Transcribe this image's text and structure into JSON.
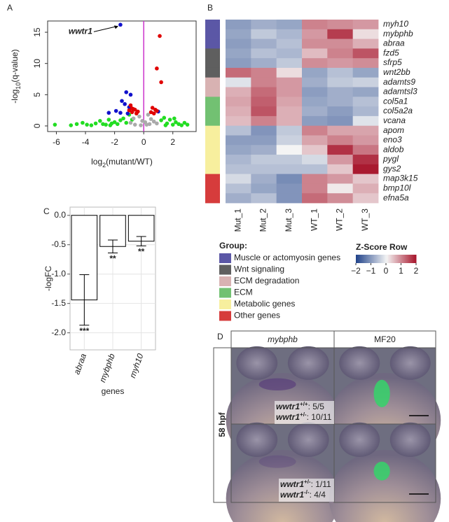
{
  "panel_labels": [
    "A",
    "B",
    "C",
    "D"
  ],
  "chart_data": [
    {
      "type": "scatter",
      "xlabel": [
        "log",
        "2",
        "(mutant/WT)"
      ],
      "ylabel": [
        "-log",
        "10",
        "(q-value)"
      ],
      "xlim": [
        -6.6,
        3.6
      ],
      "ylim": [
        -0.9,
        16.8
      ],
      "xticks": [
        -6,
        -4,
        -2,
        0,
        2
      ],
      "yticks": [
        0,
        5,
        10,
        15
      ],
      "vline": {
        "x": 0,
        "color": "#cc33cc"
      },
      "annotation": "wwtr1",
      "series": [
        {
          "color": "#22dd22",
          "x": [
            -6.1,
            -5.0,
            -4.6,
            -4.2,
            -3.9,
            -3.6,
            -3.3,
            -3.0,
            -2.8,
            -2.6,
            -2.4,
            -2.2,
            -2.0,
            -1.8,
            -1.6,
            -1.4,
            -1.2,
            -1.0,
            -0.8,
            1.2,
            1.4,
            1.6,
            1.8,
            2.0,
            2.2,
            2.4,
            2.6,
            2.8,
            3.0,
            -2.3,
            1.5,
            2.1
          ],
          "y": [
            0.2,
            0.1,
            0.3,
            0.5,
            0.2,
            0.1,
            0.4,
            0.8,
            0.3,
            0.2,
            1.0,
            0.4,
            0.6,
            0.3,
            0.9,
            1.2,
            0.5,
            1.8,
            1.0,
            0.9,
            1.3,
            0.4,
            1.0,
            0.2,
            0.6,
            0.3,
            0.1,
            0.5,
            0.2,
            0.1,
            0.1,
            1.2
          ]
        },
        {
          "color": "#aaaaaa",
          "x": [
            -0.9,
            -0.7,
            -0.5,
            -0.3,
            -0.1,
            0.1,
            0.3,
            0.5,
            0.7,
            0.9,
            -0.6,
            0.4,
            -0.2,
            0.2
          ],
          "y": [
            0.5,
            1.2,
            2.0,
            1.5,
            0.8,
            0.6,
            1.8,
            1.1,
            0.7,
            0.4,
            0.2,
            0.3,
            0.1,
            0.2
          ]
        },
        {
          "color": "#1111cc",
          "x": [
            -1.6,
            -2.4,
            -1.9,
            -1.5,
            -1.2,
            -0.9,
            -1.0,
            -1.3,
            -1.6,
            1.0,
            -1.1
          ],
          "y": [
            16.2,
            2.1,
            2.4,
            4.0,
            5.4,
            5.0,
            3.0,
            3.5,
            2.1,
            2.3,
            2.0
          ]
        },
        {
          "color": "#e00000",
          "x": [
            1.1,
            0.9,
            1.2,
            -0.9,
            -0.6,
            -1.0,
            -0.8,
            -0.5,
            -0.7,
            0.8,
            0.5,
            0.7,
            0.9,
            0.6,
            -0.4,
            -0.8
          ],
          "y": [
            14.4,
            9.2,
            7.0,
            3.3,
            2.6,
            2.5,
            2.2,
            2.0,
            2.7,
            2.6,
            2.2,
            2.0,
            2.4,
            2.9,
            2.3,
            2.8
          ]
        }
      ]
    },
    {
      "type": "heatmap",
      "columns": [
        "Mut_1",
        "Mut_2",
        "Mut_3",
        "WT_1",
        "WT_2",
        "WT_3"
      ],
      "rows": [
        "myh10",
        "mybphb",
        "abraa",
        "fzd5",
        "sfrp5",
        "wnt2bb",
        "adamts9",
        "adamtsl3",
        "col5a1",
        "col5a2a",
        "vcana",
        "apom",
        "eno3",
        "aldob",
        "pygl",
        "gys2",
        "map3k15",
        "bmp10l",
        "efna5a"
      ],
      "row_groups": [
        0,
        0,
        0,
        1,
        1,
        1,
        2,
        2,
        3,
        3,
        3,
        4,
        4,
        4,
        4,
        4,
        5,
        5,
        5
      ],
      "values": [
        [
          -1.0,
          -0.8,
          -0.9,
          1.0,
          0.9,
          0.8
        ],
        [
          -0.9,
          -0.5,
          -0.7,
          0.8,
          1.6,
          0.2
        ],
        [
          -1.0,
          -0.8,
          -0.6,
          0.9,
          0.9,
          0.6
        ],
        [
          -0.9,
          -0.6,
          -0.7,
          0.5,
          1.0,
          1.4
        ],
        [
          -1.0,
          -0.8,
          -0.5,
          0.9,
          0.8,
          0.9
        ],
        [
          1.2,
          1.0,
          0.2,
          -0.9,
          -0.6,
          -0.9
        ],
        [
          -0.2,
          1.0,
          0.8,
          -0.8,
          -0.5,
          -0.4
        ],
        [
          0.6,
          1.2,
          0.8,
          -1.0,
          -0.8,
          -0.9
        ],
        [
          0.7,
          1.3,
          0.7,
          -0.9,
          -0.8,
          -0.6
        ],
        [
          0.6,
          1.4,
          0.6,
          -0.8,
          -1.0,
          -0.7
        ],
        [
          0.5,
          1.0,
          0.6,
          -1.0,
          -1.1,
          -0.2
        ],
        [
          -0.6,
          -1.1,
          -0.5,
          1.0,
          0.7,
          0.7
        ],
        [
          -1.0,
          -1.0,
          -0.4,
          0.7,
          1.0,
          0.8
        ],
        [
          -0.9,
          -0.8,
          0.0,
          0.4,
          1.7,
          1.1
        ],
        [
          -0.7,
          -0.5,
          -0.5,
          -0.3,
          0.8,
          1.7
        ],
        [
          -0.6,
          -0.6,
          -0.6,
          -0.6,
          0.4,
          1.9
        ],
        [
          -0.3,
          -0.8,
          -1.2,
          1.0,
          0.8,
          0.4
        ],
        [
          -0.6,
          -0.9,
          -1.1,
          1.0,
          0.1,
          0.6
        ],
        [
          -0.8,
          -0.6,
          -1.1,
          1.2,
          0.9,
          0.4
        ]
      ],
      "zlim": [
        -2,
        2
      ],
      "scale_colors": [
        "#24468c",
        "#f4f4f4",
        "#a50f26"
      ],
      "colorbar_title": "Z-Score Row",
      "colorbar_ticks": [
        {
          "value": -2,
          "label": "−2"
        },
        {
          "value": -1,
          "label": "−1"
        },
        0,
        1,
        2
      ],
      "legend_title": "Group:",
      "groups": [
        {
          "name": "Muscle or actomyosin genes",
          "color": "#5b57a6"
        },
        {
          "name": "Wnt signaling",
          "color": "#5f5f5f"
        },
        {
          "name": "ECM degradation",
          "color": "#d8b2b2"
        },
        {
          "name": "ECM",
          "color": "#72c172"
        },
        {
          "name": "Metabolic genes",
          "color": "#f7ef9e"
        },
        {
          "name": "Other genes",
          "color": "#d63c3c"
        }
      ]
    },
    {
      "type": "bar",
      "ylabel": "-logFC",
      "xlabel": "genes",
      "categories": [
        "abraa",
        "mybphb",
        "myh10"
      ],
      "values": [
        -1.44,
        -0.53,
        -0.44
      ],
      "errors": [
        0.43,
        0.11,
        0.08
      ],
      "annotations": [
        "***",
        "**",
        "**"
      ],
      "ylim": [
        -2.29,
        0.14
      ],
      "yticks": [
        {
          "value": 0,
          "label": "0.0"
        },
        {
          "value": -0.5,
          "label": "-0.5"
        },
        {
          "value": -1,
          "label": "-1.0"
        },
        {
          "value": -1.5,
          "label": "-1.5"
        },
        {
          "value": -2,
          "label": "-2.0"
        }
      ],
      "grid": true,
      "color": "#ffffff"
    }
  ],
  "panel_d": {
    "columns": [
      {
        "text": "mybphb",
        "italic": true
      },
      {
        "text": "MF20",
        "color": "#2db34a"
      }
    ],
    "row_label": "58 hpf",
    "counts": [
      [
        {
          "gene": "wwtr1",
          "genotype": "+/+",
          "ratio": ": 5/5"
        },
        {
          "gene": "wwtr1",
          "genotype": "+/-",
          "ratio": ": 10/11"
        }
      ],
      [
        {
          "gene": "wwtr1",
          "genotype": "+/-",
          "ratio": ": 1/11"
        },
        {
          "gene": "wwtr1",
          "genotype": "-/-",
          "ratio": ": 4/4"
        }
      ]
    ]
  }
}
